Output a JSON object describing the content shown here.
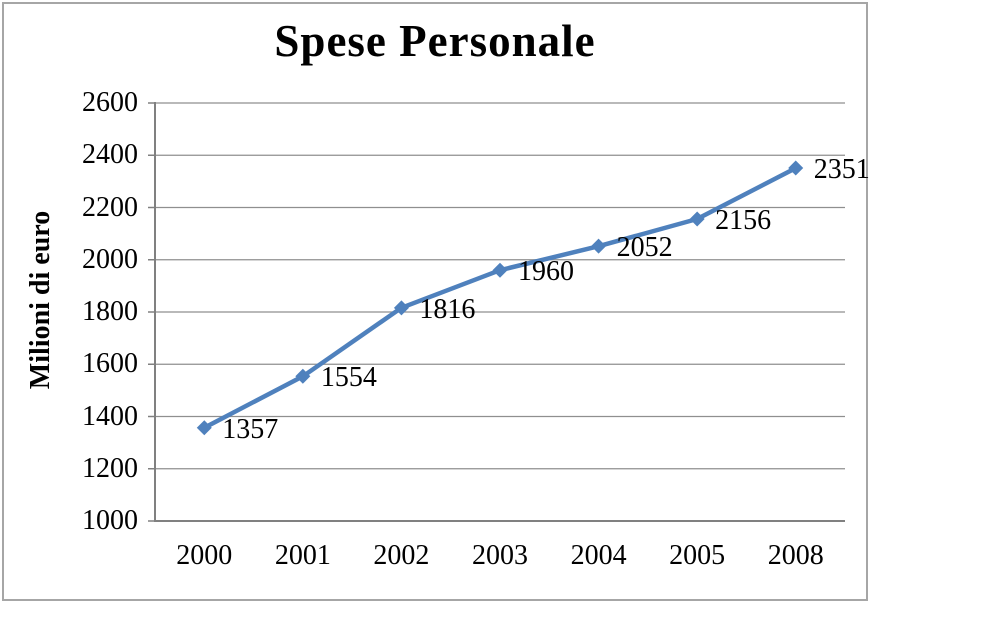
{
  "chart_data": {
    "type": "line",
    "title": "Spese Personale",
    "xlabel": "",
    "ylabel": "Milioni di euro",
    "categories": [
      "2000",
      "2001",
      "2002",
      "2003",
      "2004",
      "2005",
      "2008"
    ],
    "series": [
      {
        "name": "Spese Personale",
        "values": [
          1357,
          1554,
          1816,
          1960,
          2052,
          2156,
          2351
        ]
      }
    ],
    "data_labels": [
      "1357",
      "1554",
      "1816",
      "1960",
      "2052",
      "2156",
      "2351"
    ],
    "ylim": [
      1000,
      2600
    ],
    "yticks": [
      1000,
      1200,
      1400,
      1600,
      1800,
      2000,
      2200,
      2400,
      2600
    ],
    "grid": true,
    "legend": "none",
    "marker": "diamond",
    "colors": {
      "series": "#4F81BD",
      "axis": "#808080",
      "gridline": "#8F8F8F",
      "chart_border": "#A6A6A6",
      "text": "#000000",
      "background": "#FFFFFF"
    }
  }
}
